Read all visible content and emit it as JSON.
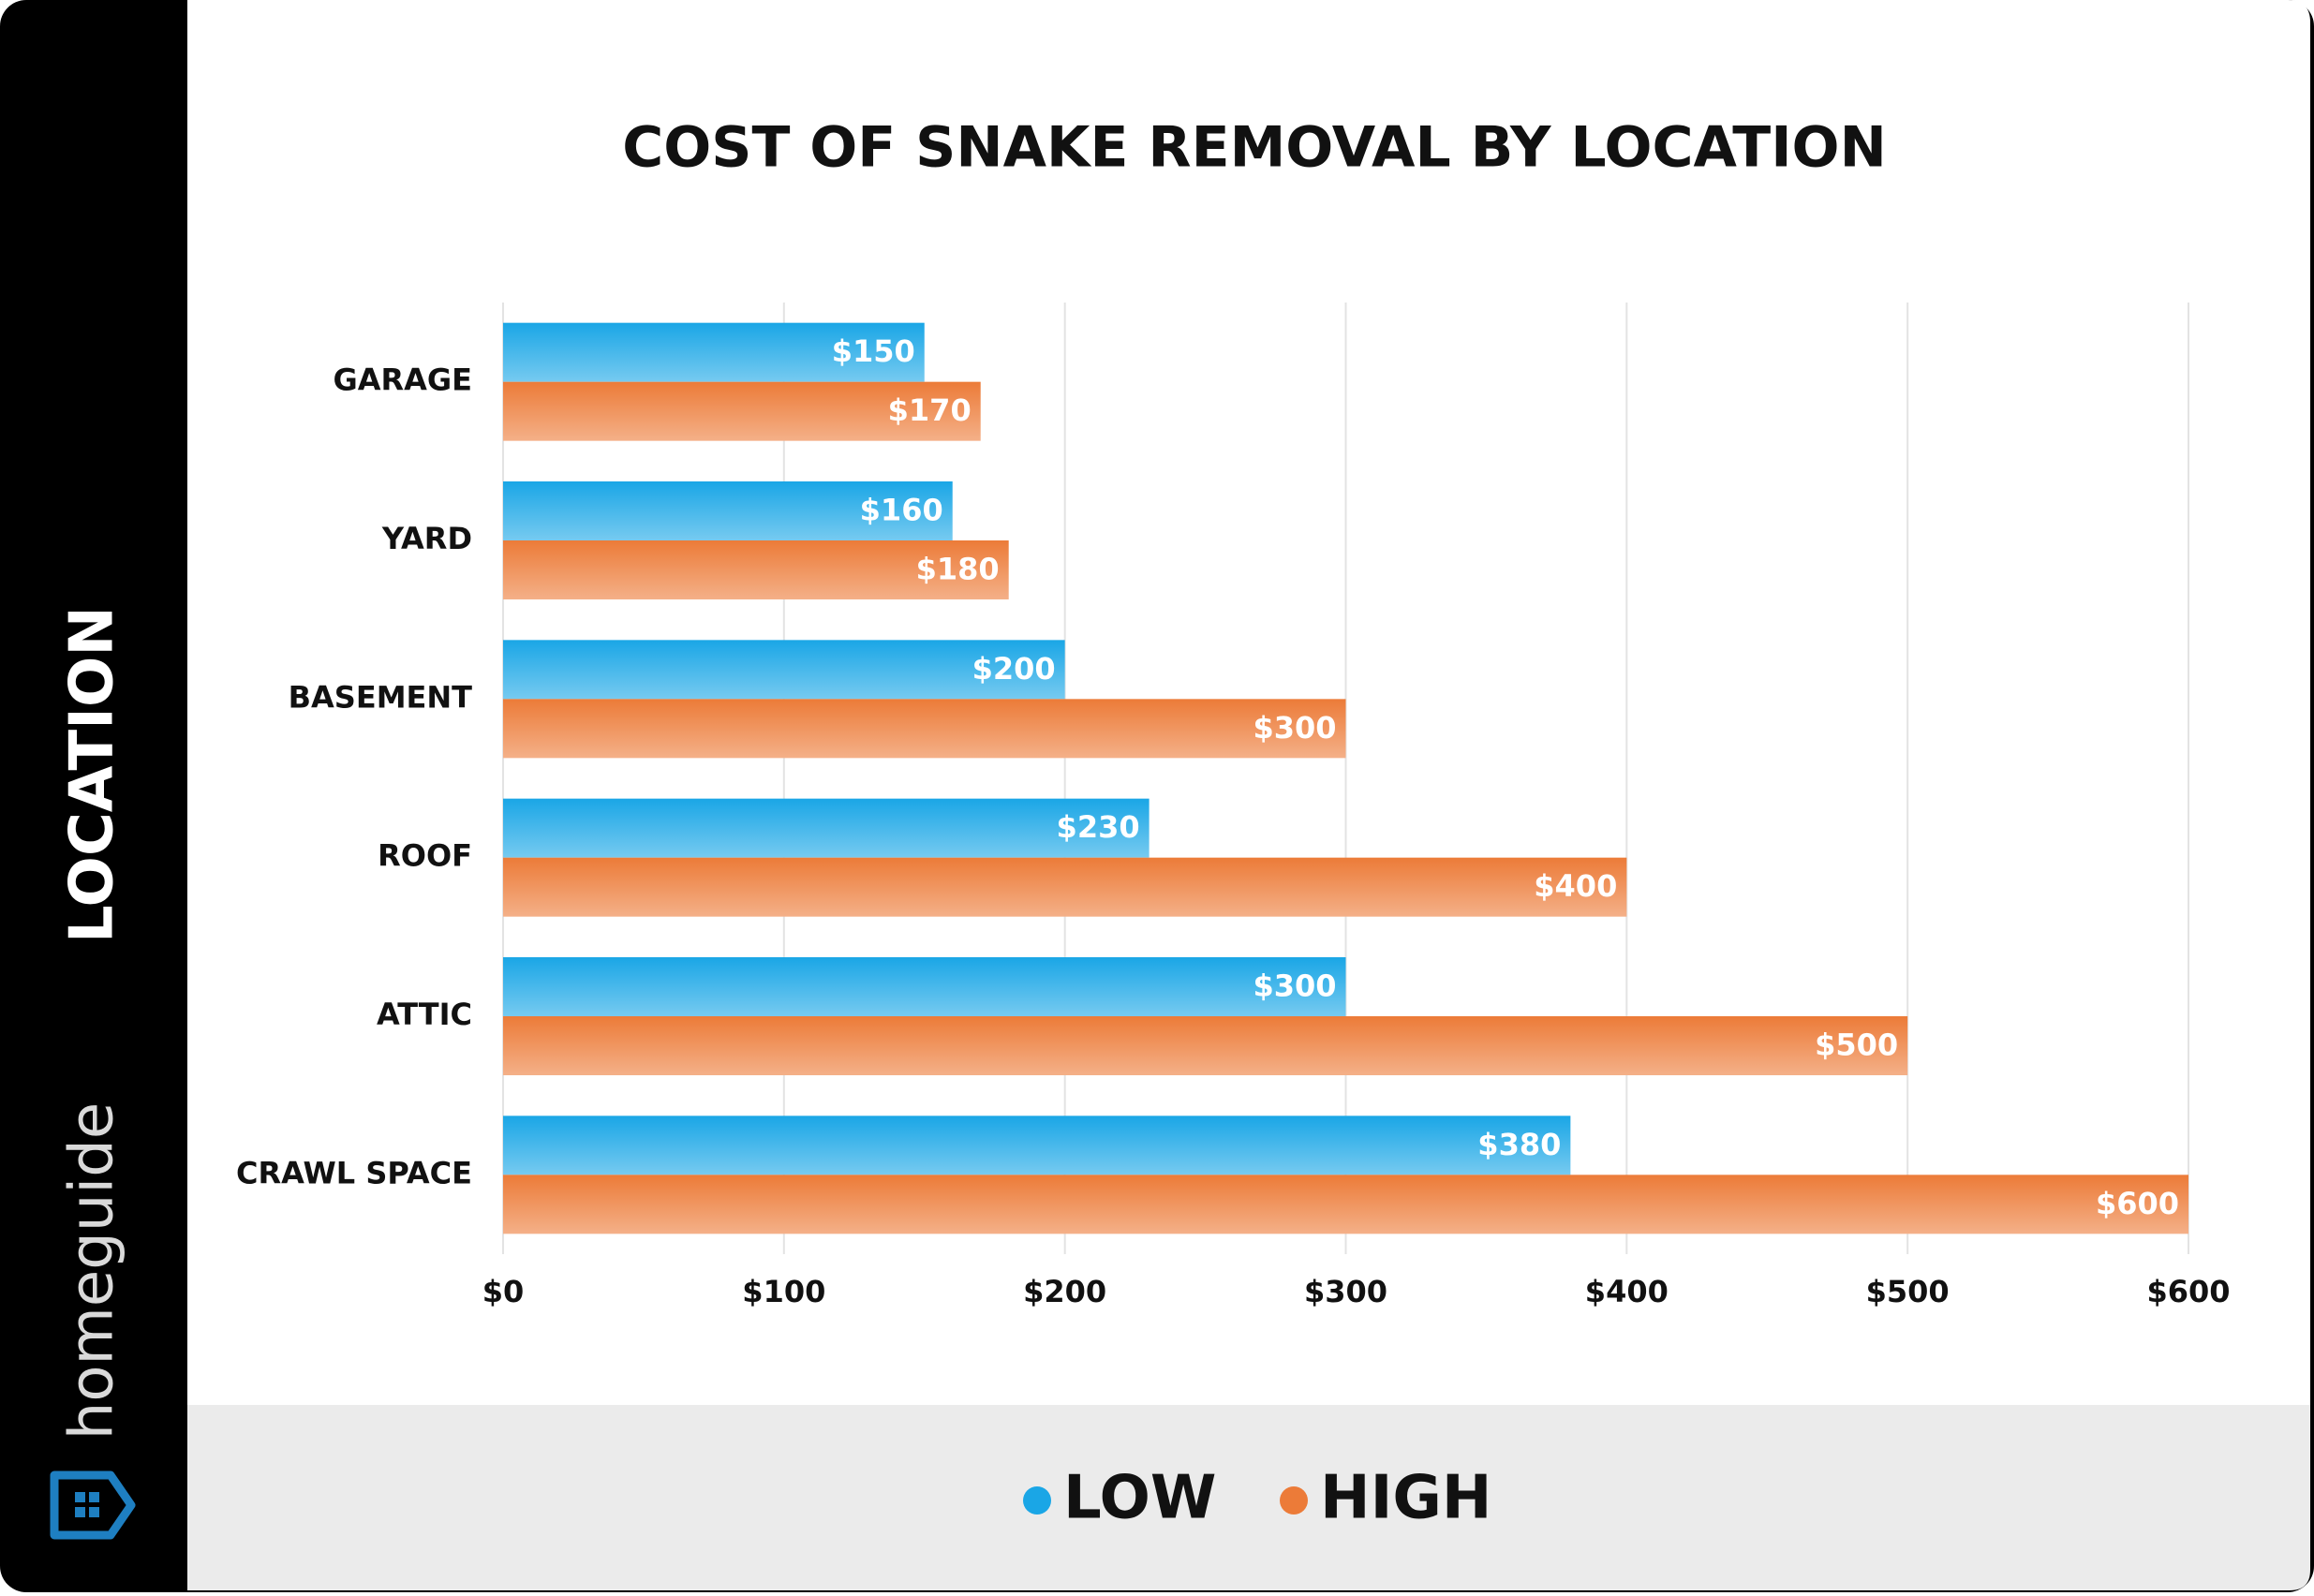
{
  "chart_data": {
    "type": "bar",
    "orientation": "horizontal",
    "title": "COST OF SNAKE REMOVAL BY LOCATION",
    "y_label": "LOCATION",
    "brand": "homeguide",
    "categories": [
      "GARAGE",
      "YARD",
      "BASEMENT",
      "ROOF",
      "ATTIC",
      "CRAWL SPACE"
    ],
    "series": [
      {
        "name": "LOW",
        "color": "#1aa6e6",
        "values": [
          150,
          160,
          200,
          230,
          300,
          380
        ],
        "value_labels": [
          "$150",
          "$160",
          "$200",
          "$230",
          "$300",
          "$380"
        ]
      },
      {
        "name": "HIGH",
        "color": "#ec7b38",
        "values": [
          170,
          180,
          300,
          400,
          500,
          600
        ],
        "value_labels": [
          "$170",
          "$180",
          "$300",
          "$400",
          "$500",
          "$600"
        ]
      }
    ],
    "xlim": [
      0,
      600
    ],
    "xticks": [
      {
        "value": 0,
        "label": "$0"
      },
      {
        "value": 100,
        "label": "$100"
      },
      {
        "value": 200,
        "label": "$200"
      },
      {
        "value": 300,
        "label": "$300"
      },
      {
        "value": 400,
        "label": "$400"
      },
      {
        "value": 500,
        "label": "$500"
      },
      {
        "value": 600,
        "label": "$600"
      }
    ],
    "grid": true,
    "legend": "bottom"
  }
}
